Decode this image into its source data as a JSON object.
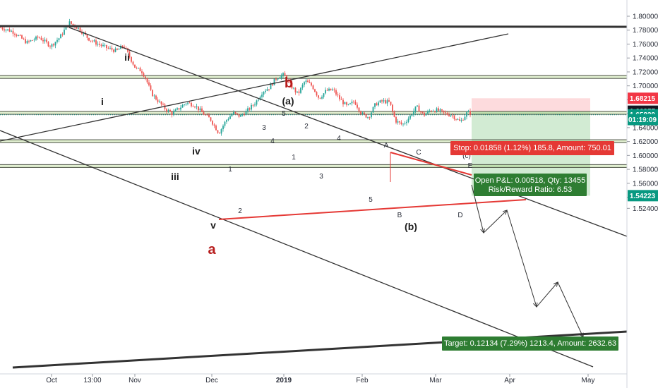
{
  "chart_data": {
    "type": "candlestick",
    "y_range": [
      1.517,
      1.82
    ],
    "y_ticks": [
      "1.80000",
      "1.78000",
      "1.76000",
      "1.74000",
      "1.72000",
      "1.70000",
      "1.68000",
      "1.66000",
      "1.64000",
      "1.62000",
      "1.60000",
      "1.58000",
      "1.56000",
      "1.54000",
      "1.52400"
    ],
    "y_tick_values": [
      1.8,
      1.78,
      1.76,
      1.74,
      1.72,
      1.7,
      1.68,
      1.66,
      1.64,
      1.62,
      1.6,
      1.58,
      1.56,
      1.54,
      1.524
    ],
    "x_ticks": [
      "Oct",
      "13:00",
      "Nov",
      "Dec",
      "2019",
      "Feb",
      "Mar",
      "Apr",
      "May"
    ],
    "price_tags": [
      {
        "label": "1.68215",
        "value": 1.68215,
        "color": "#f23645"
      },
      {
        "label": "1.66357",
        "value": 1.66357,
        "color": "#131722"
      },
      {
        "label": "1.65839",
        "value": 1.65839,
        "color": "#089981"
      },
      {
        "label": "01:19:09",
        "value": 1.6515,
        "color": "#089981"
      },
      {
        "label": "1.54223",
        "value": 1.54223,
        "color": "#089981"
      }
    ],
    "position": {
      "stop_text": "Stop: 0.01858 (1.12%) 185.8, Amount: 750.01",
      "open_text": "Open P&L: 0.00518, Qty: 13455",
      "rr_text": "Risk/Reward Ratio: 6.53",
      "target_text": "Target: 0.12134 (7.29%) 1213.4, Amount: 2632.63",
      "entry": 1.66357,
      "stop": 1.68215,
      "target": 1.54223
    },
    "wave_labels": {
      "small": [
        "ii",
        "i",
        "iv",
        "iii",
        "v",
        "1",
        "2",
        "3",
        "4",
        "5",
        "1",
        "2",
        "3",
        "4",
        "5",
        "A",
        "B",
        "C",
        "D",
        "E",
        "(c)"
      ],
      "big": [
        "(a)",
        "(b)"
      ],
      "red": [
        "b",
        "a"
      ]
    },
    "colors": {
      "up": "#26a69a",
      "down": "#ef5350",
      "stop_fill": "#f23645",
      "target_fill": "#4caf50"
    }
  }
}
